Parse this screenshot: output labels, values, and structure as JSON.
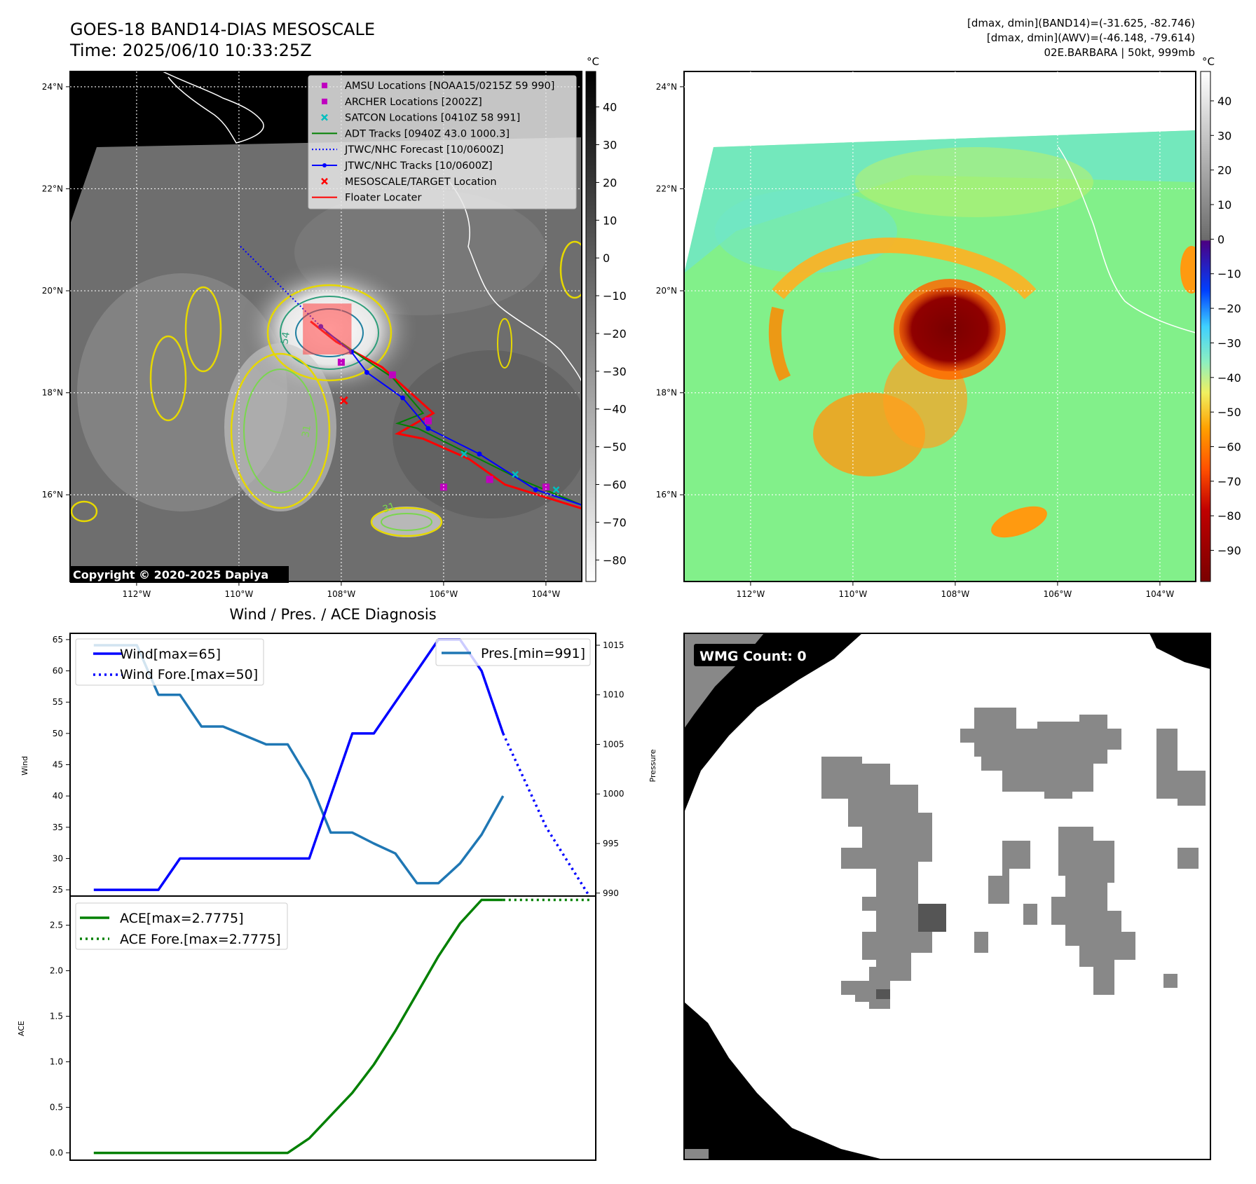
{
  "header": {
    "title": "GOES-18 BAND14-DIAS MESOSCALE",
    "time": "Time: 2025/06/10 10:33:25Z",
    "stats_line1": "[dmax, dmin](BAND14)=(-31.625, -82.746)",
    "stats_line2": "[dmax, dmin](AWV)=(-46.148, -79.614)",
    "storm": "02E.BARBARA | 50kt, 999mb"
  },
  "maps": {
    "lat_labels": [
      "24°N",
      "22°N",
      "20°N",
      "18°N",
      "16°N"
    ],
    "lon_labels": [
      "112°W",
      "110°W",
      "108°W",
      "106°W",
      "104°W"
    ],
    "lon_range": [
      -113.3,
      -103.3
    ],
    "lat_range": [
      14.3,
      24.3
    ],
    "copyright": "Copyright © 2020-2025 Dapiya",
    "unit": "°C",
    "legend": [
      {
        "label": "AMSU Locations [NOAA15/0215Z 59 990]",
        "marker": "square",
        "color": "#bf00bf"
      },
      {
        "label": "ARCHER Locations [2002Z]",
        "marker": "square",
        "color": "#bf00bf"
      },
      {
        "label": "SATCON Locations [0410Z 58 991]",
        "marker": "x",
        "color": "#00bfbf"
      },
      {
        "label": "ADT Tracks [0940Z 43.0 1000.3]",
        "marker": "line",
        "color": "#008000"
      },
      {
        "label": "JTWC/NHC Forecast [10/0600Z]",
        "marker": "dotted",
        "color": "#0000ff"
      },
      {
        "label": "JTWC/NHC Tracks [10/0600Z]",
        "marker": "line-dot",
        "color": "#0000ff"
      },
      {
        "label": "MESOSCALE/TARGET Location",
        "marker": "x",
        "color": "#ff0000"
      },
      {
        "label": "Floater Locater",
        "marker": "line",
        "color": "#ff0000"
      }
    ],
    "gray_colorbar_ticks": [
      "40",
      "30",
      "20",
      "10",
      "0",
      "−10",
      "−20",
      "−30",
      "−40",
      "−50",
      "−60",
      "−70",
      "−80"
    ],
    "color_colorbar_ticks": [
      "40",
      "30",
      "20",
      "10",
      "0",
      "−10",
      "−20",
      "−30",
      "−40",
      "−50",
      "−60",
      "−70",
      "−80",
      "−90"
    ],
    "contour_labels": [
      "54",
      "31",
      "31"
    ],
    "jtwc_track": [
      [
        -103.0,
        15.7
      ],
      [
        -104.2,
        16.1
      ],
      [
        -105.3,
        16.8
      ],
      [
        -106.3,
        17.3
      ],
      [
        -106.8,
        17.9
      ],
      [
        -107.5,
        18.4
      ],
      [
        -107.8,
        18.8
      ],
      [
        -108.4,
        19.3
      ]
    ],
    "jtwc_forecast": [
      [
        -108.4,
        19.3
      ],
      [
        -109.2,
        20.1
      ],
      [
        -110.0,
        20.9
      ]
    ],
    "adt_track": [
      [
        -103.3,
        15.8
      ],
      [
        -104.5,
        16.3
      ],
      [
        -105.5,
        16.8
      ],
      [
        -106.5,
        17.3
      ],
      [
        -106.9,
        17.4
      ],
      [
        -106.4,
        17.6
      ],
      [
        -107.0,
        18.3
      ],
      [
        -107.6,
        18.7
      ],
      [
        -108.3,
        19.2
      ]
    ],
    "floater_track": [
      [
        -103.2,
        15.7
      ],
      [
        -104.8,
        16.2
      ],
      [
        -105.5,
        16.7
      ],
      [
        -106.4,
        17.1
      ],
      [
        -106.9,
        17.2
      ],
      [
        -106.2,
        17.6
      ],
      [
        -107.2,
        18.5
      ],
      [
        -108.1,
        19.0
      ],
      [
        -108.6,
        19.4
      ]
    ],
    "amsu_points": [
      [
        -104.0,
        16.15
      ],
      [
        -105.1,
        16.3
      ],
      [
        -106.0,
        16.15
      ],
      [
        -106.3,
        17.45
      ],
      [
        -107.0,
        18.35
      ],
      [
        -108.0,
        18.6
      ]
    ],
    "satcon_points": [
      [
        -103.8,
        16.1
      ],
      [
        -104.6,
        16.4
      ],
      [
        -105.6,
        16.8
      ]
    ],
    "target_point": [
      -107.95,
      17.85
    ],
    "floater_box": [
      [
        -108.75,
        18.75
      ],
      [
        -107.8,
        19.75
      ]
    ]
  },
  "panels": {
    "wmg_count": "WMG Count: 0"
  },
  "chart_data": [
    {
      "type": "line",
      "title": "Wind / Pres. / ACE Diagnosis",
      "ylabel": "Wind",
      "y2label": "Pressure",
      "ylim": [
        24,
        66
      ],
      "y2lim": [
        989.7,
        1016.2
      ],
      "xlim": [
        -1.1,
        23.3
      ],
      "yticks": [
        "65",
        "60",
        "55",
        "50",
        "45",
        "40",
        "35",
        "30",
        "25"
      ],
      "y2ticks": [
        "1015",
        "1010",
        "1005",
        "1000",
        "995",
        "990"
      ],
      "series": [
        {
          "name": "Wind[max=65]",
          "axis": "left",
          "style": "solid",
          "color": "#0000ff",
          "x": [
            0,
            3,
            4,
            8,
            9,
            10,
            11,
            12,
            13,
            14,
            15,
            16,
            17,
            18,
            19
          ],
          "y": [
            25,
            25,
            30,
            30,
            30,
            30,
            40,
            50,
            50,
            55,
            60,
            65,
            65,
            60,
            50
          ]
        },
        {
          "name": "Wind Fore.[max=50]",
          "axis": "left",
          "style": "dotted",
          "color": "#0000ff",
          "x": [
            19,
            21,
            23
          ],
          "y": [
            50,
            35,
            24
          ]
        },
        {
          "name": "Pres.[min=991]",
          "axis": "right",
          "style": "solid",
          "color": "#1f77b4",
          "x": [
            0,
            2,
            3,
            4,
            5,
            6,
            8,
            9,
            10,
            11,
            12,
            13,
            14,
            15,
            16,
            17,
            18,
            19
          ],
          "y": [
            1015,
            1015,
            1010,
            1010,
            1006.8,
            1006.8,
            1005,
            1005,
            1001.4,
            996.1,
            996.1,
            995,
            994,
            991,
            991,
            993,
            995.9,
            999.8
          ]
        }
      ]
    },
    {
      "type": "line",
      "ylabel": "ACE",
      "ylim": [
        -0.08,
        2.82
      ],
      "xlim": [
        -1.1,
        23.3
      ],
      "yticks": [
        "2.5",
        "2.0",
        "1.5",
        "1.0",
        "0.5",
        "0.0"
      ],
      "series": [
        {
          "name": "ACE[max=2.7775]",
          "style": "solid",
          "color": "#008000",
          "x": [
            0,
            9,
            10,
            11,
            12,
            13,
            14,
            15,
            16,
            17,
            18,
            19
          ],
          "y": [
            0,
            0,
            0.16,
            0.41,
            0.66,
            0.97,
            1.34,
            1.75,
            2.16,
            2.52,
            2.7775,
            2.7775
          ]
        },
        {
          "name": "ACE Fore.[max=2.7775]",
          "style": "dotted",
          "color": "#008000",
          "x": [
            19,
            23
          ],
          "y": [
            2.7775,
            2.7775
          ]
        }
      ]
    }
  ]
}
